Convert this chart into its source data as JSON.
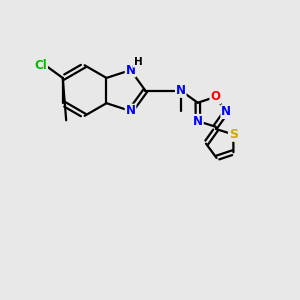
{
  "background_color": "#e8e8e8",
  "bond_color": "#000000",
  "atom_colors": {
    "N": "#0000ff",
    "O": "#ff0000",
    "S": "#ccaa00",
    "Cl": "#00bb00",
    "H": "#000000",
    "C": "#000000"
  },
  "figsize": [
    3.0,
    3.0
  ],
  "dpi": 100
}
